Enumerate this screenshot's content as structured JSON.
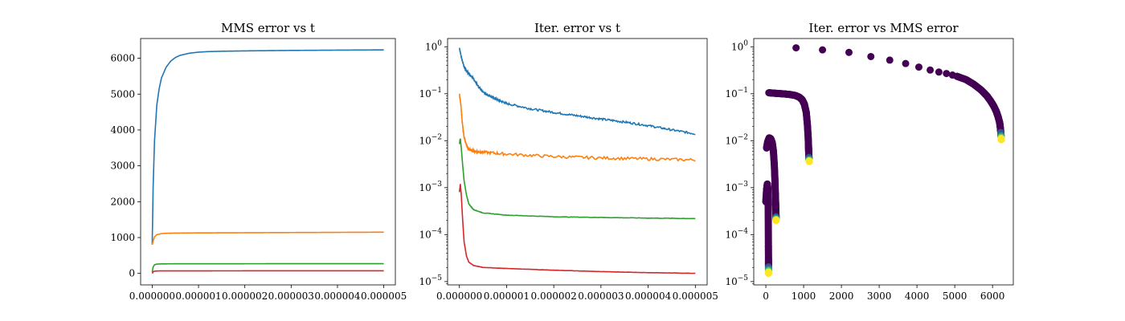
{
  "chart_data": [
    {
      "type": "line",
      "title": "MMS error vs t",
      "xlim": [
        -2.5e-07,
        5.25e-06
      ],
      "ylim": [
        -320,
        6550
      ],
      "yscale": "linear",
      "xticks": [
        0,
        1e-06,
        2e-06,
        3e-06,
        4e-06,
        5e-06
      ],
      "xtick_labels": [
        "0.000000",
        "0.000001",
        "0.000002",
        "0.000003",
        "0.000004",
        "0.000005"
      ],
      "yticks": [
        0,
        1000,
        2000,
        3000,
        4000,
        5000,
        6000
      ],
      "ytick_labels": [
        "0",
        "1000",
        "2000",
        "3000",
        "4000",
        "5000",
        "6000"
      ],
      "grid": false,
      "series": [
        {
          "color": "#1f77b4",
          "x": [
            0,
            2e-08,
            5e-08,
            1e-07,
            1.5e-07,
            2e-07,
            3e-07,
            4e-07,
            5e-07,
            6e-07,
            8e-07,
            1e-06,
            1.2e-06,
            1.5e-06,
            2e-06,
            2.5e-06,
            3e-06,
            3.5e-06,
            4e-06,
            4.5e-06,
            5e-06
          ],
          "y": [
            800,
            2400,
            3700,
            4700,
            5150,
            5450,
            5750,
            5920,
            6020,
            6080,
            6140,
            6170,
            6185,
            6195,
            6205,
            6212,
            6218,
            6222,
            6226,
            6230,
            6233
          ]
        },
        {
          "color": "#ff7f0e",
          "x": [
            0,
            2e-08,
            5e-08,
            1e-07,
            2e-07,
            3e-07,
            5e-07,
            1e-06,
            2e-06,
            3e-06,
            4e-06,
            5e-06
          ],
          "y": [
            800,
            900,
            1020,
            1080,
            1110,
            1120,
            1125,
            1130,
            1135,
            1140,
            1145,
            1150
          ]
        },
        {
          "color": "#2ca02c",
          "x": [
            0,
            2e-08,
            5e-08,
            1e-07,
            2e-07,
            3e-07,
            5e-07,
            1e-06,
            2e-06,
            3e-06,
            4e-06,
            5e-06
          ],
          "y": [
            30,
            180,
            240,
            260,
            265,
            267,
            268,
            269,
            270,
            271,
            272,
            272
          ]
        },
        {
          "color": "#d62728",
          "x": [
            0,
            2e-08,
            5e-08,
            1e-07,
            2e-07,
            5e-07,
            1e-06,
            2e-06,
            3e-06,
            4e-06,
            5e-06
          ],
          "y": [
            0,
            45,
            62,
            68,
            70,
            71,
            71,
            72,
            72,
            72,
            72
          ]
        }
      ]
    },
    {
      "type": "line",
      "title": "Iter. error vs t",
      "xlim": [
        -2.5e-07,
        5.25e-06
      ],
      "ylim": [
        8.5e-06,
        1.5
      ],
      "yscale": "log",
      "xticks": [
        0,
        1e-06,
        2e-06,
        3e-06,
        4e-06,
        5e-06
      ],
      "xtick_labels": [
        "0.000000",
        "0.000001",
        "0.000002",
        "0.000003",
        "0.000004",
        "0.000005"
      ],
      "yticks": [
        1e-05,
        0.0001,
        0.001,
        0.01,
        0.1,
        1
      ],
      "ytick_labels": [
        [
          "10",
          "−5"
        ],
        [
          "10",
          "−4"
        ],
        [
          "10",
          "−3"
        ],
        [
          "10",
          "−2"
        ],
        [
          "10",
          "−1"
        ],
        [
          "10",
          "0"
        ]
      ],
      "grid": false,
      "series": [
        {
          "color": "#1f77b4",
          "noise": 0.05,
          "x": [
            0,
            5e-08,
            1e-07,
            1.5e-07,
            2e-07,
            3e-07,
            4e-07,
            5e-07,
            6e-07,
            8e-07,
            1e-06,
            1.5e-06,
            2e-06,
            2.5e-06,
            3e-06,
            3.5e-06,
            4e-06,
            4.5e-06,
            5e-06
          ],
          "y": [
            0.95,
            0.55,
            0.38,
            0.31,
            0.27,
            0.21,
            0.14,
            0.11,
            0.095,
            0.075,
            0.062,
            0.048,
            0.04,
            0.034,
            0.029,
            0.025,
            0.021,
            0.017,
            0.014
          ]
        },
        {
          "color": "#ff7f0e",
          "noise": 0.07,
          "x": [
            0,
            3e-08,
            6e-08,
            1e-07,
            1.5e-07,
            2e-07,
            3e-07,
            5e-07,
            1e-06,
            2e-06,
            3e-06,
            4e-06,
            5e-06
          ],
          "y": [
            0.1,
            0.06,
            0.025,
            0.012,
            0.008,
            0.0065,
            0.006,
            0.0057,
            0.0052,
            0.0046,
            0.0043,
            0.0041,
            0.0039
          ]
        },
        {
          "color": "#2ca02c",
          "noise": 0.01,
          "x": [
            0,
            2e-08,
            4e-08,
            7e-08,
            1e-07,
            1.5e-07,
            2e-07,
            3e-07,
            5e-07,
            1e-06,
            2e-06,
            3e-06,
            4e-06,
            5e-06
          ],
          "y": [
            0.0085,
            0.011,
            0.007,
            0.003,
            0.0014,
            0.0007,
            0.00045,
            0.00034,
            0.00029,
            0.00026,
            0.00024,
            0.000232,
            0.000225,
            0.00022
          ]
        },
        {
          "color": "#d62728",
          "noise": 0.005,
          "x": [
            0,
            2e-08,
            4e-08,
            7e-08,
            1e-07,
            1.5e-07,
            2e-07,
            3e-07,
            5e-07,
            1e-06,
            2e-06,
            3e-06,
            4e-06,
            5e-06
          ],
          "y": [
            0.0008,
            0.0012,
            0.0007,
            0.0002,
            7e-05,
            3.5e-05,
            2.6e-05,
            2.2e-05,
            2e-05,
            1.9e-05,
            1.75e-05,
            1.63e-05,
            1.55e-05,
            1.5e-05
          ]
        }
      ]
    },
    {
      "type": "scatter",
      "title": "Iter. error vs MMS error",
      "xlim": [
        -320,
        6550
      ],
      "ylim": [
        8.5e-06,
        1.5
      ],
      "yscale": "log",
      "xticks": [
        0,
        1000,
        2000,
        3000,
        4000,
        5000,
        6000
      ],
      "xtick_labels": [
        "0",
        "1000",
        "2000",
        "3000",
        "4000",
        "5000",
        "6000"
      ],
      "yticks": [
        1e-05,
        0.0001,
        0.001,
        0.01,
        0.1,
        1
      ],
      "ytick_labels": [
        [
          "10",
          "−5"
        ],
        [
          "10",
          "−4"
        ],
        [
          "10",
          "−3"
        ],
        [
          "10",
          "−2"
        ],
        [
          "10",
          "−1"
        ],
        [
          "10",
          "0"
        ]
      ],
      "grid": false,
      "colormap": [
        "#440154",
        "#3b528b",
        "#21918c",
        "#5ec962",
        "#fde725"
      ],
      "sparse_points": {
        "x": [
          800,
          1500,
          2200,
          2780,
          3280,
          3700,
          4050,
          4350,
          4580,
          4780,
          4940,
          5060
        ],
        "y": [
          0.95,
          0.86,
          0.76,
          0.62,
          0.52,
          0.44,
          0.37,
          0.32,
          0.29,
          0.27,
          0.25,
          0.235
        ]
      },
      "dense_segments": [
        {
          "x": [
            5060,
            5300,
            5500,
            5700,
            5850,
            5950,
            6030,
            6100,
            6150,
            6190,
            6210,
            6225,
            6232
          ],
          "y": [
            0.235,
            0.2,
            0.16,
            0.12,
            0.09,
            0.07,
            0.055,
            0.042,
            0.032,
            0.024,
            0.018,
            0.013,
            0.0105
          ]
        },
        {
          "x": [
            80,
            200,
            350,
            500,
            650,
            780,
            880,
            960,
            1020,
            1070,
            1100,
            1120,
            1130,
            1135,
            1140,
            1145,
            1150
          ],
          "y": [
            0.105,
            0.103,
            0.101,
            0.099,
            0.096,
            0.092,
            0.085,
            0.075,
            0.06,
            0.04,
            0.022,
            0.012,
            0.0075,
            0.0055,
            0.0045,
            0.0039,
            0.0036
          ]
        },
        {
          "x": [
            20,
            50,
            90,
            130,
            170,
            200,
            225,
            240,
            250,
            258,
            262,
            265,
            268,
            270,
            272
          ],
          "y": [
            0.007,
            0.0095,
            0.0115,
            0.011,
            0.009,
            0.006,
            0.003,
            0.0015,
            0.0008,
            0.0005,
            0.00035,
            0.00028,
            0.00025,
            0.00022,
            0.0002
          ]
        },
        {
          "x": [
            0,
            20,
            40,
            55,
            62,
            66,
            68,
            70,
            71,
            72
          ],
          "y": [
            0.0005,
            0.0009,
            0.0012,
            0.0009,
            0.0004,
            0.00015,
            6e-05,
            3e-05,
            2e-05,
            1.5e-05
          ]
        }
      ]
    }
  ]
}
